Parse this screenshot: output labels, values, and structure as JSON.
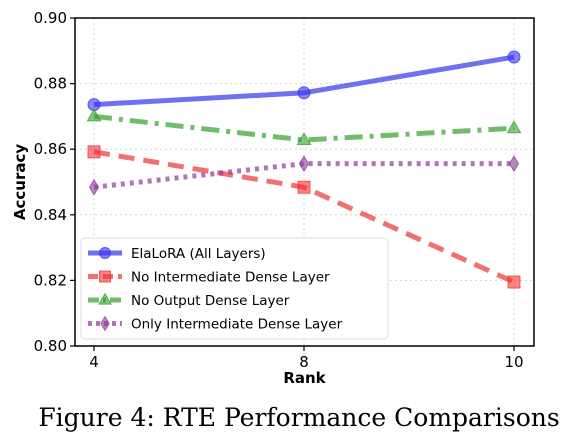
{
  "chart_data": {
    "type": "line",
    "x": [
      4,
      8,
      10
    ],
    "xticks": [
      4,
      8,
      10
    ],
    "yticks": [
      "0.80",
      "0.82",
      "0.84",
      "0.86",
      "0.88",
      "0.90"
    ],
    "ylim": [
      0.8,
      0.9
    ],
    "xlabel": "Rank",
    "ylabel": "Accuracy",
    "grid": true,
    "legend_position": "lower-left",
    "series": [
      {
        "name": "ElaLoRA (All Layers)",
        "values": [
          0.8736,
          0.8772,
          0.8881
        ],
        "color": "#3333ee",
        "marker": "circle",
        "style": "solid"
      },
      {
        "name": "No Intermediate Dense Layer",
        "values": [
          0.8592,
          0.8484,
          0.8195
        ],
        "color": "#ee3333",
        "marker": "square",
        "style": "dashed"
      },
      {
        "name": "No Output Dense Layer",
        "values": [
          0.87,
          0.8628,
          0.8664
        ],
        "color": "#33a02c",
        "marker": "triangle",
        "style": "dashdot"
      },
      {
        "name": "Only Intermediate Dense Layer",
        "values": [
          0.8484,
          0.8556,
          0.8556
        ],
        "color": "#8e3a98",
        "marker": "diamond",
        "style": "dotted"
      }
    ]
  },
  "caption": "Figure 4: RTE Performance Comparisons"
}
